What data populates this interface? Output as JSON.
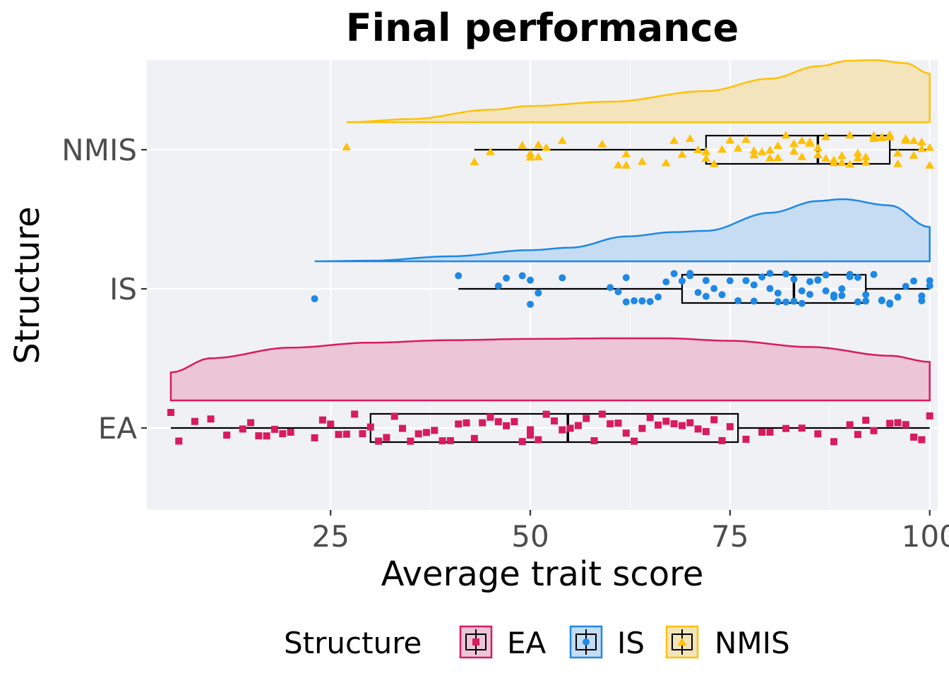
{
  "chart_data": {
    "type": "raincloud",
    "title": "Final performance",
    "xlabel": "Average trait score",
    "ylabel": "Structure",
    "xlim": [
      2,
      101
    ],
    "x_ticks": [
      25,
      50,
      75,
      100
    ],
    "categories": [
      "EA",
      "IS",
      "NMIS"
    ],
    "grid": true,
    "legend": {
      "title": "Structure",
      "position": "bottom",
      "entries": [
        "EA",
        "IS",
        "NMIS"
      ]
    },
    "series": [
      {
        "name": "EA",
        "color": "#d81b60",
        "fill": "#ecc5d6",
        "marker": "square",
        "box": {
          "min": 5,
          "q1": 30,
          "median": 54.7,
          "q3": 76,
          "max": 100
        },
        "density": {
          "x": [
            5,
            10,
            20,
            30,
            40,
            50,
            60,
            67,
            75,
            85,
            95,
            100
          ],
          "y": [
            0.45,
            0.68,
            0.85,
            0.93,
            0.97,
            0.99,
            1.0,
            1.0,
            0.96,
            0.86,
            0.72,
            0.62
          ]
        },
        "points": [
          5,
          6,
          8,
          10,
          12,
          14,
          15,
          16,
          17,
          18,
          19,
          20,
          23,
          24,
          25,
          26,
          27,
          28,
          29,
          30,
          31,
          32,
          33,
          34,
          35,
          36,
          37,
          38,
          39,
          40,
          41,
          42,
          43,
          44,
          45,
          46,
          47,
          48,
          49,
          50,
          50,
          51,
          52,
          53,
          54,
          55,
          56,
          57,
          58,
          59,
          60,
          61,
          62,
          63,
          64,
          65,
          66,
          67,
          68,
          69,
          70,
          71,
          72,
          73,
          74,
          75,
          77,
          79,
          80,
          82,
          84,
          86,
          88,
          90,
          91,
          92,
          93,
          95,
          96,
          97,
          98,
          99,
          100
        ]
      },
      {
        "name": "IS",
        "color": "#1e88e5",
        "fill": "#c5dcf3",
        "marker": "circle",
        "box": {
          "min": 41,
          "q1": 69,
          "median": 83,
          "q3": 92,
          "max": 100
        },
        "density": {
          "x": [
            23,
            30,
            40,
            50,
            55,
            62,
            68,
            72,
            80,
            86,
            89,
            95,
            100
          ],
          "y": [
            0.0,
            0.01,
            0.08,
            0.18,
            0.22,
            0.4,
            0.47,
            0.49,
            0.78,
            0.97,
            1.0,
            0.9,
            0.55
          ]
        },
        "points": [
          23,
          41,
          46,
          47,
          49,
          50,
          50,
          51,
          54,
          60,
          61,
          62,
          62,
          63,
          64,
          64,
          65,
          66,
          67,
          68,
          69,
          70,
          70,
          71,
          72,
          72,
          73,
          74,
          75,
          76,
          77,
          78,
          78,
          79,
          80,
          80,
          81,
          81,
          82,
          82,
          83,
          83,
          84,
          84,
          85,
          85,
          86,
          86,
          87,
          87,
          88,
          88,
          89,
          89,
          90,
          90,
          91,
          91,
          92,
          92,
          93,
          94,
          94,
          95,
          95,
          96,
          97,
          98,
          99,
          99,
          100,
          100
        ]
      },
      {
        "name": "NMIS",
        "color": "#ffc107",
        "fill": "#f4e4bb",
        "marker": "triangle",
        "box": {
          "min": 43,
          "q1": 72,
          "median": 86,
          "q3": 95,
          "max": 100
        },
        "density": {
          "x": [
            27,
            35,
            45,
            50,
            60,
            72,
            80,
            86,
            90,
            93,
            97,
            100
          ],
          "y": [
            0.0,
            0.05,
            0.2,
            0.26,
            0.33,
            0.5,
            0.7,
            0.9,
            0.99,
            1.0,
            0.95,
            0.78
          ]
        },
        "points": [
          27,
          43,
          45,
          49,
          50,
          50,
          51,
          51,
          52,
          54,
          59,
          61,
          62,
          62,
          64,
          67,
          68,
          69,
          70,
          71,
          72,
          72,
          73,
          74,
          75,
          76,
          77,
          78,
          78,
          79,
          80,
          80,
          81,
          81,
          82,
          83,
          83,
          84,
          84,
          85,
          85,
          86,
          86,
          87,
          87,
          88,
          88,
          89,
          89,
          90,
          90,
          91,
          91,
          92,
          92,
          93,
          93,
          94,
          94,
          95,
          95,
          96,
          96,
          97,
          97,
          98,
          98,
          99,
          99,
          100,
          100
        ]
      }
    ]
  }
}
